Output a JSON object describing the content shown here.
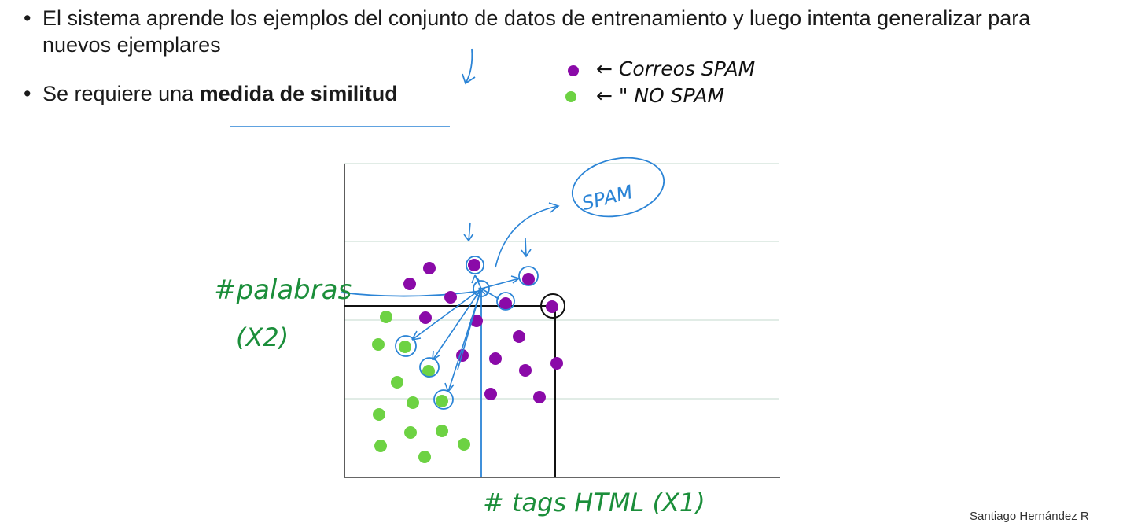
{
  "bullets": [
    {
      "text": "El sistema aprende los ejemplos del conjunto de datos de entrenamiento y luego intenta generalizar para nuevos ejemplares"
    },
    {
      "prefix": "Se requiere una ",
      "bold": "medida de similitud"
    }
  ],
  "annotations": {
    "legend_purple": "← Correos SPAM",
    "legend_green": "← \"  NO SPAM",
    "spam_bubble": "SPAM",
    "y_label_line1": "#palabras",
    "y_label_line2": "(X2)",
    "x_label": "# tags HTML (X1)"
  },
  "footer": {
    "credit": "Santiago Hernández R"
  },
  "colors": {
    "purple": "#8a0aa8",
    "green": "#6dd243",
    "blue": "#2b84d6",
    "ink_green": "#1b8e3a",
    "black": "#111111"
  },
  "chart_data": {
    "type": "scatter",
    "xlabel": "# tags HTML (X1)",
    "ylabel": "#palabras (X2)",
    "xlim": [
      0,
      550
    ],
    "ylim": [
      0,
      400
    ],
    "grid": true,
    "series": [
      {
        "name": "SPAM",
        "color": "#8a0aa8",
        "points": [
          [
            108,
            266
          ],
          [
            83,
            246
          ],
          [
            165,
            270
          ],
          [
            135,
            229
          ],
          [
            103,
            203
          ],
          [
            168,
            199
          ],
          [
            205,
            221
          ],
          [
            234,
            252
          ],
          [
            264,
            217
          ],
          [
            222,
            179
          ],
          [
            150,
            155
          ],
          [
            192,
            151
          ],
          [
            230,
            136
          ],
          [
            270,
            145
          ],
          [
            186,
            106
          ],
          [
            248,
            102
          ]
        ]
      },
      {
        "name": "NO SPAM",
        "color": "#6dd243",
        "points": [
          [
            53,
            204
          ],
          [
            43,
            169
          ],
          [
            77,
            166
          ],
          [
            107,
            135
          ],
          [
            67,
            121
          ],
          [
            87,
            95
          ],
          [
            124,
            97
          ],
          [
            44,
            80
          ],
          [
            84,
            57
          ],
          [
            124,
            59
          ],
          [
            46,
            40
          ],
          [
            102,
            26
          ],
          [
            152,
            42
          ]
        ]
      }
    ],
    "query_point": [
      174,
      238
    ],
    "new_point": [
      265,
      217
    ]
  }
}
